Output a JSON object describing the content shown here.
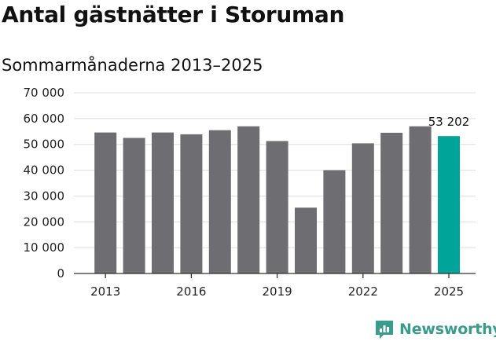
{
  "header": {
    "title": "Antal gästnätter i Storuman",
    "subtitle": "Sommarmånaderna 2013–2025"
  },
  "brand": {
    "name": "Newsworthy",
    "icon": "bar-chart-bubble-icon",
    "color": "#3a9c8c"
  },
  "chart_data": {
    "type": "bar",
    "title": "Antal gästnätter i Storuman",
    "subtitle": "Sommarmånaderna 2013–2025",
    "categories": [
      "2013",
      "2014",
      "2015",
      "2016",
      "2017",
      "2018",
      "2019",
      "2020",
      "2021",
      "2022",
      "2023",
      "2024",
      "2025"
    ],
    "values": [
      54600,
      52500,
      54600,
      53900,
      55500,
      57000,
      51300,
      25500,
      40000,
      50400,
      54500,
      57000,
      53202
    ],
    "x_tick_labels": [
      "2013",
      "2016",
      "2019",
      "2022",
      "2025"
    ],
    "y_tick_labels": [
      "0",
      "10 000",
      "20 000",
      "30 000",
      "40 000",
      "50 000",
      "60 000",
      "70 000"
    ],
    "ylim": [
      0,
      70000
    ],
    "yticks": [
      0,
      10000,
      20000,
      30000,
      40000,
      50000,
      60000,
      70000
    ],
    "grid": true,
    "legend": "none",
    "colors": {
      "bar": "#6d6d72",
      "highlight": "#00a499",
      "grid": "#dddddd",
      "axis": "#333333"
    },
    "highlight_category": "2025",
    "annotations": [
      {
        "category": "2025",
        "text": "53 202"
      }
    ]
  }
}
